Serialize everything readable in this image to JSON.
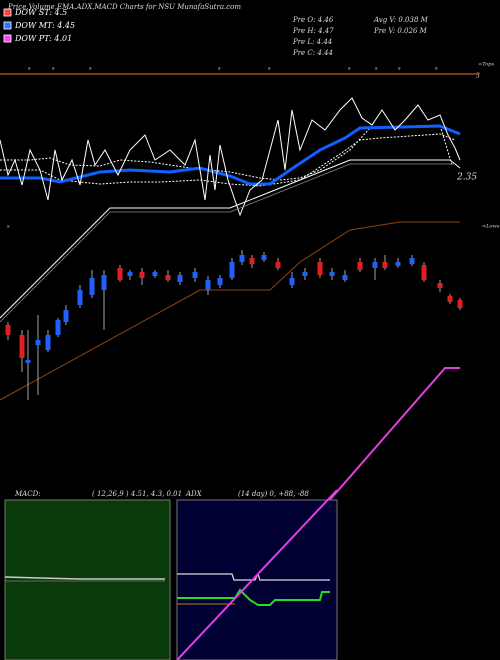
{
  "header": {
    "title": "Price,Volume,EMA,ADX,MACD Charts for NSU MunafaSutra.com"
  },
  "legend": [
    {
      "label": "DOW ST: 4.5",
      "color": "#ff4040"
    },
    {
      "label": "DOW MT: 4.45",
      "color": "#3070ff"
    },
    {
      "label": "DOW PT: 4.01",
      "color": "#ff40ff"
    }
  ],
  "info": [
    "Pre  O: 4.46",
    "Pre  H: 4.47",
    "Pre  L: 4.44",
    "Pre  C: 4.44",
    "Avg V: 0.038  M",
    "Pre  V: 0.026  M"
  ],
  "markers": [
    "s",
    "s",
    "s",
    "s",
    "s",
    "s",
    "s",
    "s",
    "s"
  ],
  "labels": {
    "tops": "<Tops",
    "tops_value": "3",
    "lows": "<Lows",
    "level": "2.35",
    "left_mark": "s"
  },
  "macd": {
    "name": "MACD:",
    "params": "( 12,26,9 ) 4.51, 4.3, 0.01"
  },
  "adx": {
    "name": "ADX",
    "params": "(14  day) 0, +88, -88"
  }
}
